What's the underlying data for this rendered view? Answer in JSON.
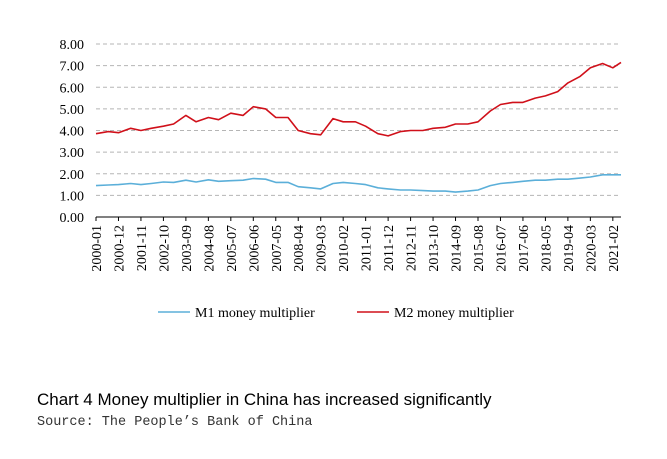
{
  "caption": "Chart 4  Money multiplier in China has increased significantly",
  "source": "Source: The People’s Bank of China",
  "chart_data": {
    "type": "line",
    "title": "",
    "xlabel": "",
    "ylabel": "",
    "ylim": [
      0,
      8
    ],
    "yticks": [
      "0.00",
      "1.00",
      "2.00",
      "3.00",
      "4.00",
      "5.00",
      "6.00",
      "7.00",
      "8.00"
    ],
    "grid": "horizontal dashed",
    "legend_position": "bottom",
    "x_tick_labels": [
      "2000-01",
      "2000-12",
      "2001-11",
      "2002-10",
      "2003-09",
      "2004-08",
      "2005-07",
      "2006-06",
      "2007-05",
      "2008-04",
      "2009-03",
      "2010-02",
      "2011-01",
      "2011-12",
      "2012-11",
      "2013-10",
      "2014-09",
      "2015-08",
      "2016-07",
      "2017-06",
      "2018-05",
      "2019-04",
      "2020-03",
      "2021-02"
    ],
    "x": [
      "2000-01",
      "2000-07",
      "2000-12",
      "2001-06",
      "2001-11",
      "2002-04",
      "2002-10",
      "2003-03",
      "2003-09",
      "2004-02",
      "2004-08",
      "2005-01",
      "2005-07",
      "2006-01",
      "2006-06",
      "2006-12",
      "2007-05",
      "2007-11",
      "2008-04",
      "2008-10",
      "2009-03",
      "2009-09",
      "2010-02",
      "2010-08",
      "2011-01",
      "2011-07",
      "2011-12",
      "2012-06",
      "2012-11",
      "2013-05",
      "2013-10",
      "2014-04",
      "2014-09",
      "2015-03",
      "2015-08",
      "2016-02",
      "2016-07",
      "2017-01",
      "2017-06",
      "2017-12",
      "2018-05",
      "2018-11",
      "2019-04",
      "2019-10",
      "2020-03",
      "2020-09",
      "2021-02",
      "2021-06"
    ],
    "series": [
      {
        "name": "M1 money multiplier",
        "color": "#5bafd9",
        "values": [
          1.45,
          1.48,
          1.5,
          1.55,
          1.5,
          1.55,
          1.62,
          1.6,
          1.7,
          1.62,
          1.72,
          1.65,
          1.68,
          1.7,
          1.78,
          1.75,
          1.6,
          1.6,
          1.4,
          1.35,
          1.3,
          1.55,
          1.6,
          1.55,
          1.5,
          1.35,
          1.3,
          1.25,
          1.25,
          1.22,
          1.2,
          1.2,
          1.15,
          1.2,
          1.25,
          1.45,
          1.55,
          1.6,
          1.65,
          1.7,
          1.7,
          1.75,
          1.75,
          1.8,
          1.85,
          1.95,
          1.95,
          1.95
        ]
      },
      {
        "name": "M2 money multiplier",
        "color": "#d0101a",
        "values": [
          3.85,
          3.95,
          3.9,
          4.1,
          4.0,
          4.1,
          4.2,
          4.3,
          4.7,
          4.4,
          4.6,
          4.5,
          4.8,
          4.7,
          5.1,
          5.0,
          4.6,
          4.6,
          4.0,
          3.85,
          3.8,
          4.55,
          4.4,
          4.4,
          4.2,
          3.85,
          3.75,
          3.95,
          4.0,
          4.0,
          4.1,
          4.15,
          4.3,
          4.3,
          4.4,
          4.9,
          5.2,
          5.3,
          5.3,
          5.5,
          5.6,
          5.8,
          6.2,
          6.5,
          6.9,
          7.1,
          6.9,
          7.15
        ]
      }
    ]
  }
}
